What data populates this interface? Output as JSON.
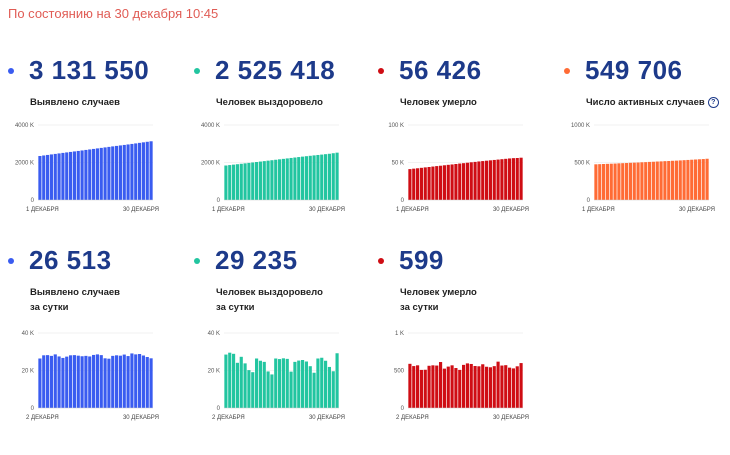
{
  "timestamp": "По состоянию на 30 декабря 10:45",
  "cards": [
    {
      "value": "3 131 550",
      "label": [
        "Выявлено случаев"
      ],
      "color": "#3a5cf0",
      "info": false,
      "chart_data": {
        "type": "bar",
        "yticks": [
          "4000 K",
          "2000 K",
          "0"
        ],
        "ylim": [
          0,
          4000
        ],
        "xticks": [
          "1 ДЕКАБРЯ",
          "30 ДЕКАБРЯ"
        ],
        "values": [
          2347,
          2375,
          2403,
          2431,
          2458,
          2485,
          2512,
          2538,
          2564,
          2590,
          2616,
          2643,
          2670,
          2697,
          2724,
          2752,
          2779,
          2806,
          2832,
          2859,
          2885,
          2911,
          2937,
          2963,
          2990,
          3018,
          3047,
          3076,
          3105,
          3132
        ]
      }
    },
    {
      "value": "2 525 418",
      "label": [
        "Человек выздоровело"
      ],
      "color": "#22c5a0",
      "info": false,
      "chart_data": {
        "type": "bar",
        "yticks": [
          "4000 K",
          "2000 K",
          "0"
        ],
        "ylim": [
          0,
          4000
        ],
        "xticks": [
          "1 ДЕКАБРЯ",
          "30 ДЕКАБРЯ"
        ],
        "values": [
          1840,
          1863,
          1886,
          1909,
          1932,
          1955,
          1979,
          2002,
          2026,
          2050,
          2074,
          2098,
          2122,
          2146,
          2170,
          2194,
          2218,
          2242,
          2266,
          2290,
          2313,
          2336,
          2358,
          2380,
          2401,
          2422,
          2444,
          2465,
          2495,
          2525
        ]
      }
    },
    {
      "value": "56 426",
      "label": [
        "Человек умерло"
      ],
      "color": "#cf0d14",
      "info": false,
      "chart_data": {
        "type": "bar",
        "yticks": [
          "100 K",
          "50 K",
          "0"
        ],
        "ylim": [
          0,
          100
        ],
        "xticks": [
          "1 ДЕКАБРЯ",
          "30 ДЕКАБРЯ"
        ],
        "values": [
          41.2,
          41.8,
          42.3,
          42.9,
          43.5,
          44.0,
          44.6,
          45.2,
          45.7,
          46.3,
          46.9,
          47.4,
          48.0,
          48.6,
          49.1,
          49.7,
          50.3,
          50.8,
          51.4,
          51.9,
          52.4,
          52.9,
          53.4,
          53.9,
          54.4,
          54.9,
          55.4,
          55.8,
          56.0,
          56.4
        ]
      }
    },
    {
      "value": "549 706",
      "label": [
        "Число активных случаев"
      ],
      "color": "#ff6b35",
      "info": true,
      "chart_data": {
        "type": "bar",
        "yticks": [
          "1000 K",
          "500 K",
          "0"
        ],
        "ylim": [
          0,
          1000
        ],
        "xticks": [
          "1 ДЕКАБРЯ",
          "30 ДЕКАБРЯ"
        ],
        "values": [
          476,
          478,
          480,
          482,
          484,
          486,
          489,
          491,
          493,
          496,
          498,
          500,
          503,
          505,
          508,
          510,
          513,
          515,
          518,
          520,
          523,
          525,
          528,
          531,
          534,
          537,
          540,
          543,
          546,
          550
        ]
      }
    },
    {
      "value": "26 513",
      "label": [
        "Выявлено случаев",
        "за сутки"
      ],
      "color": "#3a5cf0",
      "info": false,
      "chart_data": {
        "type": "bar",
        "yticks": [
          "40 K",
          "20 K",
          "0"
        ],
        "ylim": [
          0,
          40
        ],
        "xticks": [
          "2 ДЕКАБРЯ",
          "30 ДЕКАБРЯ"
        ],
        "values": [
          26.4,
          28.1,
          28.2,
          27.8,
          28.6,
          27.5,
          26.7,
          27.4,
          28.1,
          28.2,
          27.9,
          27.6,
          27.8,
          27.5,
          28.3,
          28.6,
          28.2,
          26.5,
          26.3,
          27.8,
          28.1,
          27.9,
          28.5,
          27.7,
          29.1,
          28.6,
          28.8,
          28.0,
          27.2,
          26.5
        ]
      }
    },
    {
      "value": "29 235",
      "label": [
        "Человек выздоровело",
        "за сутки"
      ],
      "color": "#22c5a0",
      "info": false,
      "chart_data": {
        "type": "bar",
        "yticks": [
          "40 K",
          "20 K",
          "0"
        ],
        "ylim": [
          0,
          40
        ],
        "xticks": [
          "2 ДЕКАБРЯ",
          "30 ДЕКАБРЯ"
        ],
        "values": [
          28.5,
          29.5,
          28.9,
          24.1,
          27.3,
          23.8,
          20.2,
          19.1,
          26.4,
          25.2,
          24.6,
          19.5,
          17.9,
          26.4,
          26.1,
          26.5,
          26.2,
          19.4,
          24.6,
          25.3,
          25.6,
          24.8,
          22.3,
          18.8,
          26.4,
          26.8,
          25.2,
          21.9,
          19.6,
          29.2
        ]
      }
    },
    {
      "value": "599",
      "label": [
        "Человек умерло",
        "за сутки"
      ],
      "color": "#cf0d14",
      "info": false,
      "chart_data": {
        "type": "bar",
        "yticks": [
          "1 K",
          "500",
          "0"
        ],
        "ylim": [
          0,
          1000
        ],
        "xticks": [
          "2 ДЕКАБРЯ",
          "30 ДЕКАБРЯ"
        ],
        "values": [
          589,
          559,
          569,
          508,
          510,
          563,
          569,
          566,
          613,
          525,
          552,
          569,
          533,
          508,
          575,
          595,
          587,
          560,
          556,
          583,
          550,
          543,
          558,
          618,
          566,
          571,
          538,
          528,
          556,
          599
        ]
      }
    }
  ]
}
